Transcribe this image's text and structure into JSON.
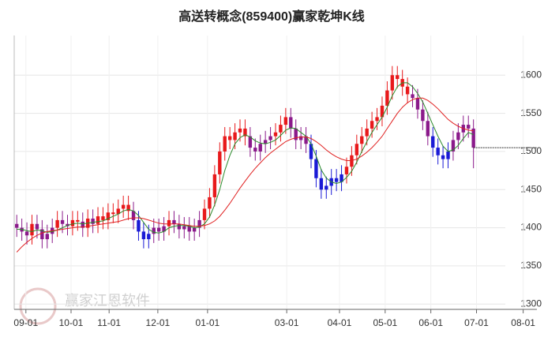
{
  "chart_data": {
    "type": "candlestick",
    "title": "高送转概念(859400)赢家乾坤K线",
    "watermark": "赢家江恩软件",
    "x": [
      0,
      1,
      2,
      3,
      4,
      5,
      6,
      7,
      8,
      9,
      10,
      11,
      12,
      13,
      14,
      15,
      16,
      17,
      18,
      19,
      20,
      21,
      22,
      23,
      24,
      25,
      26,
      27,
      28,
      29,
      30,
      31,
      32,
      33,
      34,
      35,
      36,
      37,
      38,
      39,
      40,
      41,
      42,
      43,
      44,
      45,
      46,
      47,
      48,
      49,
      50,
      51,
      52,
      53,
      54,
      55,
      56,
      57,
      58,
      59,
      60,
      61,
      62,
      63,
      64,
      65,
      66,
      67,
      68,
      69,
      70,
      71,
      72,
      73,
      74,
      75,
      76,
      77,
      78,
      79,
      80,
      81,
      82,
      83,
      84,
      85,
      86,
      87,
      88,
      89,
      90
    ],
    "open": [
      1405,
      1400,
      1395,
      1390,
      1405,
      1398,
      1385,
      1392,
      1400,
      1410,
      1405,
      1402,
      1410,
      1408,
      1400,
      1412,
      1405,
      1415,
      1410,
      1420,
      1418,
      1425,
      1430,
      1422,
      1410,
      1395,
      1385,
      1392,
      1400,
      1395,
      1402,
      1410,
      1405,
      1398,
      1402,
      1395,
      1400,
      1410,
      1425,
      1440,
      1470,
      1500,
      1520,
      1515,
      1525,
      1530,
      1520,
      1505,
      1500,
      1510,
      1515,
      1520,
      1525,
      1535,
      1545,
      1530,
      1515,
      1520,
      1510,
      1490,
      1465,
      1450,
      1455,
      1465,
      1460,
      1470,
      1480,
      1495,
      1510,
      1520,
      1530,
      1540,
      1545,
      1560,
      1580,
      1600,
      1595,
      1585,
      1575,
      1570,
      1555,
      1540,
      1520,
      1505,
      1495,
      1490,
      1500,
      1515,
      1525,
      1535,
      1530
    ],
    "high": [
      1417,
      1412,
      1407,
      1417,
      1417,
      1410,
      1404,
      1412,
      1422,
      1422,
      1417,
      1422,
      1422,
      1420,
      1424,
      1424,
      1427,
      1427,
      1432,
      1432,
      1437,
      1442,
      1442,
      1434,
      1422,
      1407,
      1404,
      1412,
      1412,
      1414,
      1422,
      1422,
      1417,
      1414,
      1414,
      1412,
      1422,
      1437,
      1452,
      1482,
      1512,
      1532,
      1532,
      1537,
      1542,
      1542,
      1532,
      1517,
      1522,
      1527,
      1532,
      1537,
      1547,
      1557,
      1557,
      1542,
      1532,
      1532,
      1522,
      1502,
      1477,
      1467,
      1477,
      1477,
      1482,
      1492,
      1507,
      1522,
      1532,
      1542,
      1552,
      1557,
      1572,
      1592,
      1612,
      1612,
      1607,
      1597,
      1587,
      1582,
      1567,
      1552,
      1532,
      1517,
      1507,
      1512,
      1527,
      1537,
      1547,
      1547,
      1542
    ],
    "low": [
      1388,
      1383,
      1378,
      1378,
      1386,
      1373,
      1373,
      1380,
      1388,
      1393,
      1390,
      1390,
      1396,
      1388,
      1388,
      1393,
      1393,
      1398,
      1398,
      1406,
      1406,
      1413,
      1410,
      1398,
      1383,
      1373,
      1373,
      1380,
      1383,
      1383,
      1390,
      1393,
      1386,
      1386,
      1383,
      1383,
      1388,
      1398,
      1413,
      1428,
      1458,
      1488,
      1503,
      1503,
      1513,
      1508,
      1493,
      1488,
      1488,
      1498,
      1503,
      1508,
      1513,
      1523,
      1518,
      1503,
      1503,
      1498,
      1478,
      1453,
      1438,
      1438,
      1443,
      1448,
      1448,
      1458,
      1468,
      1483,
      1498,
      1508,
      1518,
      1528,
      1533,
      1548,
      1568,
      1583,
      1573,
      1563,
      1558,
      1543,
      1528,
      1508,
      1493,
      1483,
      1478,
      1478,
      1488,
      1503,
      1513,
      1518,
      1478
    ],
    "close": [
      1400,
      1395,
      1390,
      1405,
      1398,
      1385,
      1392,
      1400,
      1410,
      1405,
      1402,
      1410,
      1408,
      1400,
      1412,
      1405,
      1415,
      1410,
      1420,
      1418,
      1425,
      1430,
      1422,
      1410,
      1395,
      1385,
      1392,
      1400,
      1395,
      1402,
      1410,
      1405,
      1398,
      1402,
      1395,
      1400,
      1410,
      1425,
      1440,
      1470,
      1500,
      1520,
      1515,
      1525,
      1530,
      1520,
      1505,
      1500,
      1510,
      1515,
      1520,
      1525,
      1535,
      1545,
      1530,
      1515,
      1520,
      1510,
      1490,
      1465,
      1450,
      1455,
      1465,
      1460,
      1470,
      1480,
      1495,
      1510,
      1520,
      1530,
      1540,
      1545,
      1560,
      1580,
      1600,
      1595,
      1585,
      1575,
      1570,
      1555,
      1540,
      1520,
      1505,
      1495,
      1490,
      1500,
      1515,
      1525,
      1535,
      1530,
      1505
    ],
    "signal": [
      "flat",
      "flat",
      "flat",
      "up",
      "flat",
      "flat",
      "flat",
      "flat",
      "up",
      "flat",
      "flat",
      "up",
      "up",
      "flat",
      "up",
      "flat",
      "up",
      "up",
      "up",
      "up",
      "up",
      "up",
      "up",
      "flat",
      "down",
      "down",
      "down",
      "flat",
      "flat",
      "flat",
      "up",
      "flat",
      "flat",
      "flat",
      "flat",
      "flat",
      "flat",
      "up",
      "up",
      "up",
      "up",
      "up",
      "up",
      "up",
      "up",
      "up",
      "flat",
      "flat",
      "flat",
      "flat",
      "flat",
      "up",
      "up",
      "up",
      "flat",
      "flat",
      "flat",
      "flat",
      "down",
      "down",
      "down",
      "down",
      "down",
      "down",
      "down",
      "up",
      "up",
      "up",
      "up",
      "up",
      "up",
      "up",
      "up",
      "up",
      "up",
      "up",
      "up",
      "up",
      "flat",
      "flat",
      "flat",
      "flat",
      "down",
      "down",
      "down",
      "down",
      "flat",
      "flat",
      "flat",
      "flat",
      "flat"
    ],
    "palette": {
      "up": "#e8191b",
      "down": "#1a1ad6",
      "flat": "#8b1a8b"
    },
    "overlays": [
      {
        "color": "#2a8a2a",
        "values": [
          1398,
          1398,
          1396,
          1395,
          1397,
          1396,
          1394,
          1395,
          1397,
          1400,
          1403,
          1405,
          1406,
          1405,
          1406,
          1407,
          1408,
          1409,
          1412,
          1415,
          1418,
          1422,
          1424,
          1422,
          1416,
          1407,
          1398,
          1394,
          1393,
          1395,
          1400,
          1402,
          1403,
          1403,
          1402,
          1400,
          1401,
          1405,
          1414,
          1430,
          1450,
          1475,
          1495,
          1510,
          1518,
          1522,
          1519,
          1514,
          1511,
          1510,
          1512,
          1515,
          1521,
          1528,
          1531,
          1530,
          1525,
          1520,
          1510,
          1494,
          1476,
          1465,
          1460,
          1458,
          1460,
          1466,
          1474,
          1486,
          1500,
          1513,
          1525,
          1535,
          1545,
          1558,
          1573,
          1585,
          1590,
          1590,
          1585,
          1576,
          1565,
          1550,
          1535,
          1520,
          1507,
          1500,
          1502,
          1508,
          1517,
          1525,
          1522
        ]
      },
      {
        "color": "#e02020",
        "values": [
          1368,
          1375,
          1381,
          1386,
          1390,
          1393,
          1395,
          1396,
          1397,
          1398,
          1399,
          1400,
          1401,
          1401,
          1402,
          1403,
          1404,
          1405,
          1406,
          1407,
          1408,
          1410,
          1412,
          1413,
          1413,
          1412,
          1410,
          1408,
          1406,
          1405,
          1405,
          1405,
          1405,
          1404,
          1403,
          1402,
          1402,
          1403,
          1405,
          1409,
          1415,
          1423,
          1432,
          1442,
          1452,
          1461,
          1470,
          1478,
          1485,
          1492,
          1498,
          1503,
          1508,
          1513,
          1516,
          1518,
          1519,
          1519,
          1517,
          1513,
          1508,
          1502,
          1497,
          1493,
          1490,
          1488,
          1488,
          1490,
          1494,
          1499,
          1505,
          1512,
          1520,
          1530,
          1540,
          1550,
          1558,
          1564,
          1568,
          1570,
          1570,
          1567,
          1562,
          1556,
          1549,
          1542,
          1537,
          1533,
          1530,
          1528,
          1527
        ]
      }
    ],
    "last_price_line": true,
    "xlim": [
      -0.5,
      102.5
    ],
    "xticks": [
      {
        "value": 1.8,
        "label": "09-01"
      },
      {
        "value": 10.7,
        "label": "10-01"
      },
      {
        "value": 18.2,
        "label": "11-01"
      },
      {
        "value": 27.8,
        "label": "12-01"
      },
      {
        "value": 37.6,
        "label": "01-01"
      },
      {
        "value": 53.2,
        "label": "03-01"
      },
      {
        "value": 63.6,
        "label": "04-01"
      },
      {
        "value": 72.6,
        "label": "05-01"
      },
      {
        "value": 81.6,
        "label": "06-01"
      },
      {
        "value": 90.6,
        "label": "07-01"
      },
      {
        "value": 99.8,
        "label": "08-01"
      }
    ],
    "ylim": [
      1293,
      1652
    ],
    "yticks": [
      1300,
      1350,
      1400,
      1450,
      1500,
      1550,
      1600
    ],
    "grid": true
  }
}
